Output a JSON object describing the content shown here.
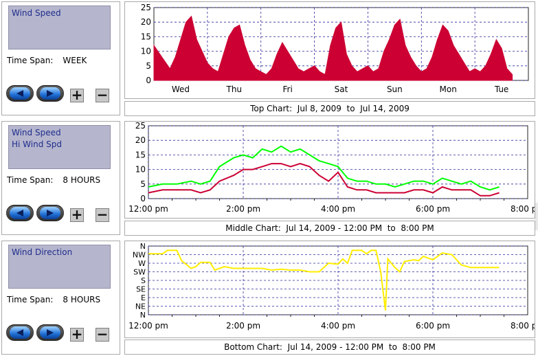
{
  "panels": [
    {
      "series": [
        "Wind Speed"
      ],
      "timespan_label": "Time Span:",
      "timespan_value": "WEEK",
      "caption": "Top Chart:  Jul 8, 2009  to  Jul 14, 2009"
    },
    {
      "series": [
        "Wind Speed",
        "Hi Wind Spd"
      ],
      "timespan_label": "Time Span:",
      "timespan_value": "8 HOURS",
      "caption": "Middle Chart:  Jul 14, 2009 - 12:00 PM  to  8:00 PM"
    },
    {
      "series": [
        "Wind Direction"
      ],
      "timespan_label": "Time Span:",
      "timespan_value": "8 HOURS",
      "caption": "Bottom Chart:  Jul 14, 2009 - 12:00 PM  to  8:00 PM"
    }
  ],
  "controls": {
    "plus_label": "+",
    "minus_label": "−"
  },
  "colors": {
    "wind_speed": "#cc0033",
    "hi_wind": "#00ff00",
    "direction": "#ffee00",
    "grid": "#2a2a9a",
    "panel_bg": "#b5b5cd"
  },
  "chart_data": [
    {
      "type": "area",
      "ylim": [
        0,
        25
      ],
      "yticks": [
        0,
        5,
        10,
        15,
        20,
        25
      ],
      "xticks": [
        "Wed",
        "Thu",
        "Fri",
        "Sat",
        "Sun",
        "Mon",
        "Tue"
      ],
      "xlim": [
        0,
        7
      ],
      "series": [
        {
          "color": "#cc0033",
          "points": [
            [
              0.0,
              12
            ],
            [
              0.15,
              8
            ],
            [
              0.3,
              4
            ],
            [
              0.4,
              8
            ],
            [
              0.5,
              14
            ],
            [
              0.6,
              20
            ],
            [
              0.7,
              22
            ],
            [
              0.8,
              14
            ],
            [
              0.9,
              10
            ],
            [
              1.0,
              6
            ],
            [
              1.1,
              4
            ],
            [
              1.2,
              3
            ],
            [
              1.3,
              9
            ],
            [
              1.4,
              15
            ],
            [
              1.5,
              18
            ],
            [
              1.6,
              19
            ],
            [
              1.7,
              12
            ],
            [
              1.8,
              7
            ],
            [
              1.9,
              4
            ],
            [
              2.0,
              3
            ],
            [
              2.1,
              2
            ],
            [
              2.2,
              4
            ],
            [
              2.3,
              9
            ],
            [
              2.4,
              13
            ],
            [
              2.5,
              10
            ],
            [
              2.6,
              7
            ],
            [
              2.7,
              4
            ],
            [
              2.8,
              3
            ],
            [
              2.9,
              4
            ],
            [
              3.0,
              5
            ],
            [
              3.1,
              3
            ],
            [
              3.2,
              2
            ],
            [
              3.3,
              12
            ],
            [
              3.4,
              18
            ],
            [
              3.5,
              20
            ],
            [
              3.6,
              9
            ],
            [
              3.7,
              5
            ],
            [
              3.8,
              3
            ],
            [
              3.9,
              4
            ],
            [
              4.0,
              5
            ],
            [
              4.1,
              3
            ],
            [
              4.2,
              4
            ],
            [
              4.3,
              10
            ],
            [
              4.4,
              14
            ],
            [
              4.5,
              19
            ],
            [
              4.6,
              21
            ],
            [
              4.7,
              12
            ],
            [
              4.8,
              8
            ],
            [
              4.9,
              5
            ],
            [
              5.0,
              3
            ],
            [
              5.1,
              4
            ],
            [
              5.2,
              8
            ],
            [
              5.3,
              14
            ],
            [
              5.4,
              19
            ],
            [
              5.5,
              17
            ],
            [
              5.6,
              12
            ],
            [
              5.7,
              9
            ],
            [
              5.8,
              6
            ],
            [
              5.9,
              3
            ],
            [
              6.0,
              4
            ],
            [
              6.1,
              3
            ],
            [
              6.2,
              5
            ],
            [
              6.3,
              9
            ],
            [
              6.4,
              14
            ],
            [
              6.5,
              11
            ],
            [
              6.6,
              4
            ],
            [
              6.7,
              2
            ]
          ]
        }
      ]
    },
    {
      "type": "line",
      "ylim": [
        0,
        25
      ],
      "yticks": [
        0,
        5,
        10,
        15,
        20,
        25
      ],
      "xticks": [
        "12:00 pm",
        "2:00 pm",
        "4:00 pm",
        "6:00 pm",
        "8:00 pm"
      ],
      "xlim": [
        0,
        8
      ],
      "series": [
        {
          "name": "Hi Wind Spd",
          "color": "#00ff00",
          "points": [
            [
              0.0,
              4
            ],
            [
              0.3,
              5
            ],
            [
              0.6,
              5
            ],
            [
              0.9,
              6
            ],
            [
              1.1,
              5
            ],
            [
              1.3,
              6
            ],
            [
              1.5,
              11
            ],
            [
              1.8,
              14
            ],
            [
              2.0,
              15
            ],
            [
              2.2,
              14
            ],
            [
              2.4,
              17
            ],
            [
              2.6,
              16
            ],
            [
              2.8,
              18
            ],
            [
              3.0,
              16
            ],
            [
              3.2,
              17
            ],
            [
              3.4,
              15
            ],
            [
              3.6,
              13
            ],
            [
              3.8,
              12
            ],
            [
              4.0,
              11
            ],
            [
              4.2,
              7
            ],
            [
              4.4,
              6
            ],
            [
              4.6,
              6
            ],
            [
              4.8,
              5
            ],
            [
              5.0,
              5
            ],
            [
              5.2,
              4
            ],
            [
              5.4,
              5
            ],
            [
              5.6,
              6
            ],
            [
              5.8,
              6
            ],
            [
              6.0,
              5
            ],
            [
              6.2,
              7
            ],
            [
              6.4,
              6
            ],
            [
              6.6,
              5
            ],
            [
              6.8,
              6
            ],
            [
              7.0,
              4
            ],
            [
              7.2,
              3
            ],
            [
              7.4,
              4
            ]
          ]
        },
        {
          "name": "Wind Speed",
          "color": "#cc0033",
          "points": [
            [
              0.0,
              2
            ],
            [
              0.3,
              3
            ],
            [
              0.6,
              3
            ],
            [
              0.9,
              3
            ],
            [
              1.1,
              2
            ],
            [
              1.3,
              3
            ],
            [
              1.5,
              6
            ],
            [
              1.8,
              8
            ],
            [
              2.0,
              10
            ],
            [
              2.2,
              10
            ],
            [
              2.4,
              11
            ],
            [
              2.6,
              12
            ],
            [
              2.8,
              12
            ],
            [
              3.0,
              11
            ],
            [
              3.2,
              12
            ],
            [
              3.4,
              11
            ],
            [
              3.6,
              8
            ],
            [
              3.8,
              6
            ],
            [
              4.0,
              9
            ],
            [
              4.2,
              4
            ],
            [
              4.4,
              3
            ],
            [
              4.6,
              3
            ],
            [
              4.8,
              2
            ],
            [
              5.0,
              2
            ],
            [
              5.2,
              2
            ],
            [
              5.4,
              2
            ],
            [
              5.6,
              3
            ],
            [
              5.8,
              3
            ],
            [
              6.0,
              2
            ],
            [
              6.2,
              4
            ],
            [
              6.4,
              3
            ],
            [
              6.6,
              3
            ],
            [
              6.8,
              3
            ],
            [
              7.0,
              1
            ],
            [
              7.2,
              1
            ],
            [
              7.4,
              2
            ]
          ]
        }
      ]
    },
    {
      "type": "line",
      "ylabels": [
        "N",
        "NW",
        "W",
        "SW",
        "S",
        "SE",
        "E",
        "NE",
        "N"
      ],
      "ylim": [
        0,
        8
      ],
      "xticks": [
        "12:00 pm",
        "2:00 pm",
        "4:00 pm",
        "6:00 pm",
        "8:00 pm"
      ],
      "xlim": [
        0,
        8
      ],
      "series": [
        {
          "name": "Wind Direction",
          "color": "#ffee00",
          "points": [
            [
              0.0,
              7.1
            ],
            [
              0.3,
              7.1
            ],
            [
              0.4,
              7.5
            ],
            [
              0.6,
              7.5
            ],
            [
              0.7,
              6.3
            ],
            [
              0.9,
              5.4
            ],
            [
              1.0,
              5.6
            ],
            [
              1.1,
              6.1
            ],
            [
              1.3,
              6.1
            ],
            [
              1.4,
              5.2
            ],
            [
              1.6,
              5.6
            ],
            [
              1.8,
              5.4
            ],
            [
              2.0,
              5.4
            ],
            [
              2.4,
              5.4
            ],
            [
              2.6,
              5.2
            ],
            [
              2.8,
              5.3
            ],
            [
              3.0,
              5.2
            ],
            [
              3.2,
              5.2
            ],
            [
              3.4,
              5.0
            ],
            [
              3.6,
              5.0
            ],
            [
              3.8,
              6.0
            ],
            [
              4.0,
              5.9
            ],
            [
              4.1,
              6.5
            ],
            [
              4.2,
              6.0
            ],
            [
              4.3,
              7.5
            ],
            [
              4.5,
              7.5
            ],
            [
              4.6,
              7.1
            ],
            [
              4.7,
              7.5
            ],
            [
              4.8,
              7.5
            ],
            [
              4.9,
              5.0
            ],
            [
              5.0,
              0.5
            ],
            [
              5.05,
              6.5
            ],
            [
              5.2,
              5.5
            ],
            [
              5.3,
              5.0
            ],
            [
              5.4,
              6.2
            ],
            [
              5.6,
              6.4
            ],
            [
              5.7,
              6.3
            ],
            [
              5.8,
              6.8
            ],
            [
              6.0,
              6.4
            ],
            [
              6.2,
              7.2
            ],
            [
              6.4,
              7.0
            ],
            [
              6.6,
              5.8
            ],
            [
              6.8,
              5.5
            ],
            [
              7.0,
              5.5
            ],
            [
              7.4,
              5.5
            ]
          ]
        }
      ]
    }
  ]
}
